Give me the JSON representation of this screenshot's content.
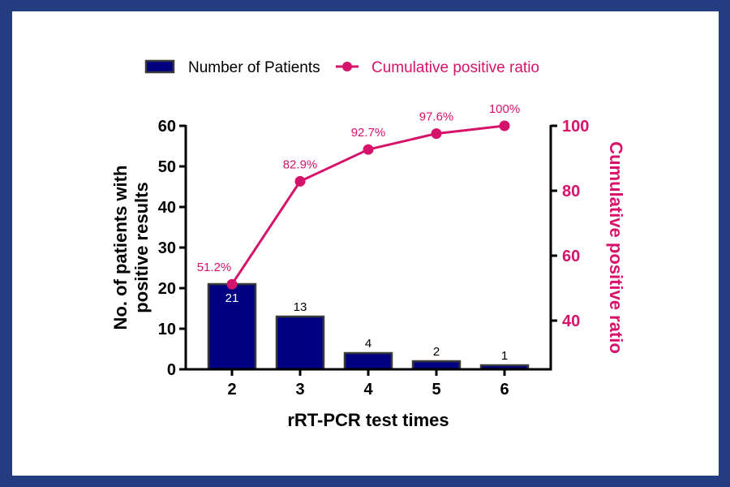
{
  "colors": {
    "frame": "#243c80",
    "bar_fill": "#000080",
    "bar_stroke": "#3a3a3a",
    "line": "#d6136a",
    "axis": "#000000"
  },
  "chart_data": {
    "type": "bar+line",
    "categories": [
      "2",
      "3",
      "4",
      "5",
      "6"
    ],
    "xlabel": "rRT-PCR test times",
    "ylabel_lines": [
      "No. of patients with",
      "positive results"
    ],
    "y2label": "Cumulative positive ratio",
    "ylim": [
      0,
      60
    ],
    "yticks": [
      0,
      10,
      20,
      30,
      40,
      50,
      60
    ],
    "y2lim": [
      25,
      100
    ],
    "y2ticks": [
      40,
      60,
      80,
      100
    ],
    "legend_position": "top",
    "series": [
      {
        "name": "Number of Patients",
        "type": "bar",
        "axis": "left",
        "values": [
          21,
          13,
          4,
          2,
          1
        ],
        "labels": [
          "21",
          "13",
          "4",
          "2",
          "1"
        ]
      },
      {
        "name": "Cumulative positive ratio",
        "type": "line",
        "axis": "right",
        "values": [
          51.2,
          82.9,
          92.7,
          97.6,
          100
        ],
        "labels": [
          "51.2%",
          "82.9%",
          "92.7%",
          "97.6%",
          "100%"
        ]
      }
    ]
  }
}
